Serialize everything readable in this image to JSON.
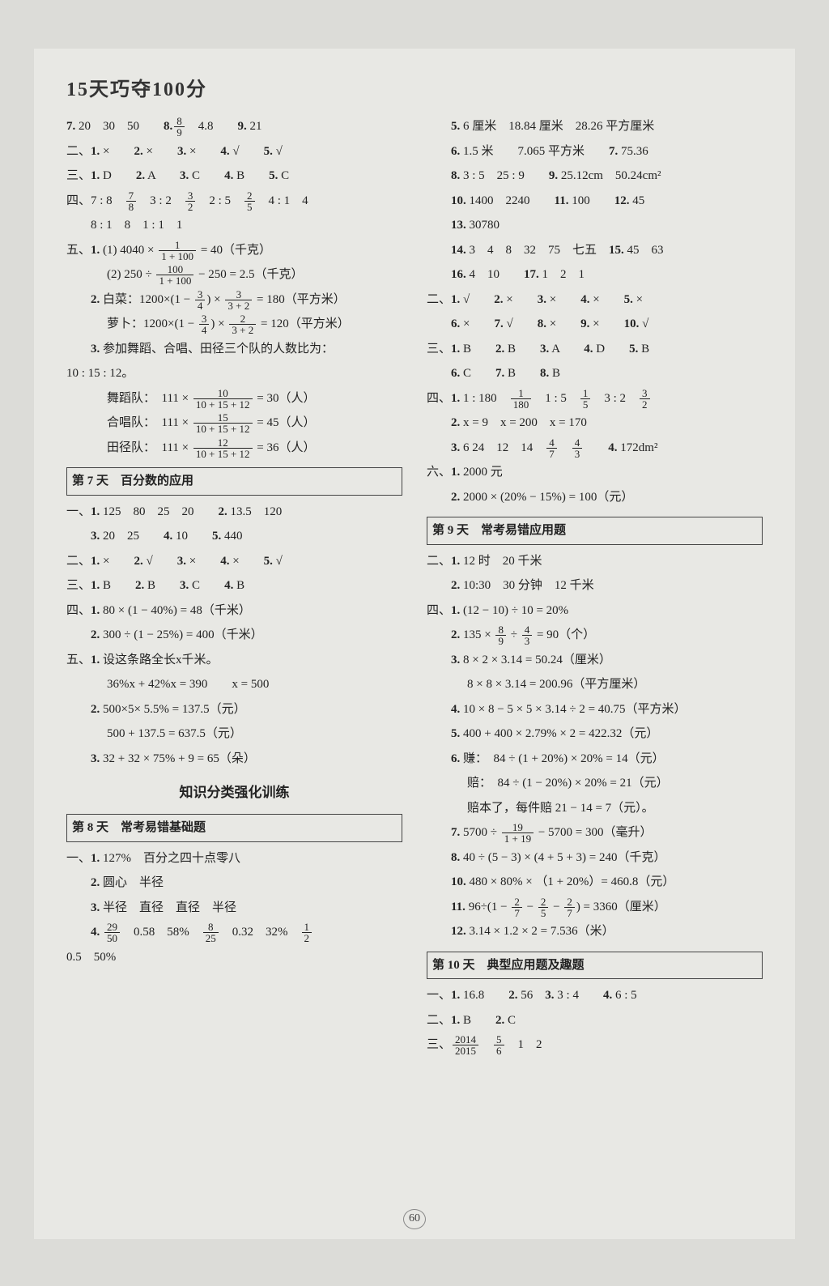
{
  "page_title": "15天巧夺100分",
  "page_number": "60",
  "colors": {
    "bg": "#e8e8e4",
    "text": "#222",
    "border": "#444"
  },
  "left": {
    "top_lines": [
      {
        "pre": "",
        "items": [
          {
            "b": "7.",
            "t": " 20　30　50　　"
          },
          {
            "b": "8.",
            "frac": [
              "8",
              "9"
            ],
            "t2": "　4.8　　"
          },
          {
            "b": "9.",
            "t": " 21"
          }
        ]
      },
      {
        "pre": "二、",
        "items": [
          {
            "b": "1.",
            "t": " ×　　"
          },
          {
            "b": "2.",
            "t": " ×　　"
          },
          {
            "b": "3.",
            "t": " ×　　"
          },
          {
            "b": "4.",
            "t": " √　　"
          },
          {
            "b": "5.",
            "t": " √"
          }
        ]
      },
      {
        "pre": "三、",
        "items": [
          {
            "b": "1.",
            "t": " D　　"
          },
          {
            "b": "2.",
            "t": " A　　"
          },
          {
            "b": "3.",
            "t": " C　　"
          },
          {
            "b": "4.",
            "t": " B　　"
          },
          {
            "b": "5.",
            "t": " C"
          }
        ]
      }
    ],
    "si_line1": {
      "pre": "四、",
      "parts": [
        {
          "t": "7 : 8　"
        },
        {
          "frac": [
            "7",
            "8"
          ]
        },
        {
          "t": "　3 : 2　"
        },
        {
          "frac": [
            "3",
            "2"
          ]
        },
        {
          "t": "　2 : 5　"
        },
        {
          "frac": [
            "2",
            "5"
          ]
        },
        {
          "t": "　4 : 1　4"
        }
      ]
    },
    "si_line2": "8 : 1　8　1 : 1　1",
    "wu1": {
      "pre": "五、",
      "b": "1.",
      "a_pre": " (1)  4040 × ",
      "a_frac": [
        "1",
        "1 + 100"
      ],
      "a_post": " = 40（千克）"
    },
    "wu1b": {
      "pre": "(2)  250 ÷ ",
      "frac": [
        "100",
        "1 + 100"
      ],
      "post": " − 250 = 2.5（千克）"
    },
    "wu2a": {
      "b": "2.",
      "label": " 白菜：1200×",
      "frac1": [
        "3",
        "4"
      ],
      "mid": "×",
      "frac2": [
        "3",
        "3 + 2"
      ],
      "post": " = 180（平方米）"
    },
    "wu2b": {
      "label": "萝卜：1200×",
      "frac1": [
        "3",
        "4"
      ],
      "mid": "×",
      "frac2": [
        "2",
        "3 + 2"
      ],
      "post": " = 120（平方米）"
    },
    "wu3_text": "3. 参加舞蹈、合唱、田径三个队的人数比为：",
    "wu3_ratio": "10 : 15 : 12。",
    "wu3_rows": [
      {
        "label": "舞蹈队：　111 × ",
        "frac": [
          "10",
          "10 + 15 + 12"
        ],
        "post": " = 30（人）"
      },
      {
        "label": "合唱队：　111 × ",
        "frac": [
          "15",
          "10 + 15 + 12"
        ],
        "post": " = 45（人）"
      },
      {
        "label": "田径队：　111 × ",
        "frac": [
          "12",
          "10 + 15 + 12"
        ],
        "post": " = 36（人）"
      }
    ],
    "day7_head": "第 7 天　百分数的应用",
    "day7": [
      {
        "pre": "一、",
        "items": [
          {
            "b": "1.",
            "t": " 125　80　25　20　　"
          },
          {
            "b": "2.",
            "t": " 13.5　120"
          }
        ]
      },
      {
        "pre": "",
        "items": [
          {
            "b": "3.",
            "t": " 20　25　　"
          },
          {
            "b": "4.",
            "t": " 10　　"
          },
          {
            "b": "5.",
            "t": " 440"
          }
        ],
        "indent": 1
      },
      {
        "pre": "二、",
        "items": [
          {
            "b": "1.",
            "t": " ×　　"
          },
          {
            "b": "2.",
            "t": " √　　"
          },
          {
            "b": "3.",
            "t": " ×　　"
          },
          {
            "b": "4.",
            "t": " ×　　"
          },
          {
            "b": "5.",
            "t": " √"
          }
        ]
      },
      {
        "pre": "三、",
        "items": [
          {
            "b": "1.",
            "t": " B　　"
          },
          {
            "b": "2.",
            "t": " B　　"
          },
          {
            "b": "3.",
            "t": " C　　"
          },
          {
            "b": "4.",
            "t": " B"
          }
        ]
      },
      {
        "pre": "四、",
        "items": [
          {
            "b": "1.",
            "t": " 80 × (1 − 40%) = 48（千米）"
          }
        ]
      },
      {
        "pre": "",
        "items": [
          {
            "b": "2.",
            "t": " 300 ÷ (1 − 25%) = 400（千米）"
          }
        ],
        "indent": 1
      },
      {
        "pre": "五、",
        "items": [
          {
            "b": "1.",
            "t": " 设这条路全长x千米。"
          }
        ]
      },
      {
        "pre": "",
        "plain": "36%x + 42%x = 390　　x = 500",
        "indent": 2
      },
      {
        "pre": "",
        "items": [
          {
            "b": "2.",
            "t": " 500×5× 5.5% = 137.5（元）"
          }
        ],
        "indent": 1
      },
      {
        "pre": "",
        "plain": "500 + 137.5 = 637.5（元）",
        "indent": 2
      },
      {
        "pre": "",
        "items": [
          {
            "b": "3.",
            "t": " 32 + 32 × 75% + 9 = 65（朵）"
          }
        ],
        "indent": 1
      }
    ],
    "mid_head": "知识分类强化训练",
    "day8_head": "第 8 天　常考易错基础题",
    "day8": [
      {
        "pre": "一、",
        "items": [
          {
            "b": "1.",
            "t": " 127%　百分之四十点零八"
          }
        ]
      },
      {
        "pre": "",
        "items": [
          {
            "b": "2.",
            "t": " 圆心　半径"
          }
        ],
        "indent": 1
      },
      {
        "pre": "",
        "items": [
          {
            "b": "3.",
            "t": " 半径　直径　直径　半径"
          }
        ],
        "indent": 1
      }
    ],
    "day8_4": {
      "b": "4.",
      "frac1": [
        "29",
        "50"
      ],
      "mid": "　0.58　58%　",
      "frac2": [
        "8",
        "25"
      ],
      "mid2": "　0.32　32%　",
      "frac3": [
        "1",
        "2"
      ]
    },
    "day8_tail": "0.5　50%"
  },
  "right": {
    "top": [
      {
        "items": [
          {
            "b": "5.",
            "t": " 6 厘米　18.84 厘米　28.26 平方厘米"
          }
        ]
      },
      {
        "items": [
          {
            "b": "6.",
            "t": " 1.5 米　　7.065 平方米　　"
          },
          {
            "b": "7.",
            "t": " 75.36"
          }
        ]
      },
      {
        "items": [
          {
            "b": "8.",
            "t": " 3 : 5　25 : 9　　"
          },
          {
            "b": "9.",
            "t": " 25.12cm　50.24cm²"
          }
        ]
      },
      {
        "items": [
          {
            "b": "10.",
            "t": " 1400　2240　　"
          },
          {
            "b": "11.",
            "t": " 100　　"
          },
          {
            "b": "12.",
            "t": " 45"
          }
        ]
      },
      {
        "items": [
          {
            "b": "13.",
            "t": " 30780"
          }
        ]
      },
      {
        "items": [
          {
            "b": "14.",
            "t": " 3　4　8　32　75　七五　"
          },
          {
            "b": "15.",
            "t": " 45　63"
          }
        ]
      },
      {
        "items": [
          {
            "b": "16.",
            "t": " 4　10　　"
          },
          {
            "b": "17.",
            "t": " 1　2　1"
          }
        ]
      }
    ],
    "sec2": [
      {
        "pre": "二、",
        "items": [
          {
            "b": "1.",
            "t": " √　　"
          },
          {
            "b": "2.",
            "t": " ×　　"
          },
          {
            "b": "3.",
            "t": " ×　　"
          },
          {
            "b": "4.",
            "t": " ×　　"
          },
          {
            "b": "5.",
            "t": " ×"
          }
        ]
      },
      {
        "pre": "",
        "items": [
          {
            "b": "6.",
            "t": " ×　　"
          },
          {
            "b": "7.",
            "t": " √　　"
          },
          {
            "b": "8.",
            "t": " ×　　"
          },
          {
            "b": "9.",
            "t": " ×　　"
          },
          {
            "b": "10.",
            "t": " √"
          }
        ],
        "indent": 1
      },
      {
        "pre": "三、",
        "items": [
          {
            "b": "1.",
            "t": " B　　"
          },
          {
            "b": "2.",
            "t": " B　　"
          },
          {
            "b": "3.",
            "t": " A　　"
          },
          {
            "b": "4.",
            "t": " D　　"
          },
          {
            "b": "5.",
            "t": " B"
          }
        ]
      },
      {
        "pre": "",
        "items": [
          {
            "b": "6.",
            "t": " C　　"
          },
          {
            "b": "7.",
            "t": " B　　"
          },
          {
            "b": "8.",
            "t": " B"
          }
        ],
        "indent": 1
      }
    ],
    "si": {
      "line1": {
        "pre": "四、",
        "b": "1.",
        "parts": [
          {
            "t": " 1 : 180　"
          },
          {
            "frac": [
              "1",
              "180"
            ]
          },
          {
            "t": "　1 : 5　"
          },
          {
            "frac": [
              "1",
              "5"
            ]
          },
          {
            "t": "　3 : 2　"
          },
          {
            "frac": [
              "3",
              "2"
            ]
          }
        ]
      },
      "line2": {
        "b": "2.",
        "t": " x = 9　x = 200　x = 170"
      },
      "line3": {
        "b": "3.",
        "parts": [
          {
            "t": " 6 24　12　14　"
          },
          {
            "frac": [
              "4",
              "7"
            ]
          },
          {
            "t": "　"
          },
          {
            "frac": [
              "4",
              "3"
            ]
          },
          {
            "t": "　　"
          }
        ],
        "b2": "4.",
        "t2": " 172dm²"
      }
    },
    "liu": [
      {
        "pre": "六、",
        "items": [
          {
            "b": "1.",
            "t": " 2000 元"
          }
        ]
      },
      {
        "pre": "",
        "items": [
          {
            "b": "2.",
            "t": " 2000 × (20% − 15%) = 100（元）"
          }
        ],
        "indent": 1
      }
    ],
    "day9_head": "第 9 天　常考易错应用题",
    "day9_top": [
      {
        "pre": "二、",
        "items": [
          {
            "b": "1.",
            "t": " 12 时　20 千米"
          }
        ]
      },
      {
        "pre": "",
        "items": [
          {
            "b": "2.",
            "t": " 10:30　30 分钟　12 千米"
          }
        ],
        "indent": 1
      },
      {
        "pre": "四、",
        "items": [
          {
            "b": "1.",
            "t": " (12 − 10) ÷ 10 = 20%"
          }
        ]
      }
    ],
    "d9_2": {
      "b": "2.",
      "pre": " 135 × ",
      "frac1": [
        "8",
        "9"
      ],
      "mid": " ÷ ",
      "frac2": [
        "4",
        "3"
      ],
      "post": " = 90（个）"
    },
    "d9_rest": [
      {
        "b": "3.",
        "t": " 8 × 2 × 3.14 = 50.24（厘米）"
      },
      {
        "plain": "8 × 8 × 3.14 = 200.96（平方厘米）",
        "indent": 2
      },
      {
        "b": "4.",
        "t": " 10 × 8 − 5 × 5 × 3.14 ÷ 2 = 40.75（平方米）"
      },
      {
        "b": "5.",
        "t": " 400 + 400 × 2.79% × 2 = 422.32（元）"
      },
      {
        "b": "6.",
        "t": " 赚：　84 ÷ (1 + 20%) × 20% = 14（元）"
      },
      {
        "plain": "赔：　84 ÷ (1 − 20%) × 20% = 21（元）",
        "indent": 2
      },
      {
        "plain": "赔本了，每件赔 21 − 14 = 7（元）。",
        "indent": 2
      }
    ],
    "d9_7": {
      "b": "7.",
      "pre": " 5700 ÷ ",
      "frac": [
        "19",
        "1 + 19"
      ],
      "post": " − 5700 = 300（毫升）"
    },
    "d9_rest2": [
      {
        "b": "8.",
        "t": " 40 ÷ (5 − 3) × (4 + 5 + 3) = 240（千克）"
      },
      {
        "b": "10.",
        "t": " 480 × 80% × （1 + 20%）= 460.8（元）"
      }
    ],
    "d9_11": {
      "b": "11.",
      "pre": " 96÷",
      "parts": [
        {
          "t": "(1 − "
        },
        {
          "frac": [
            "2",
            "7"
          ]
        },
        {
          "t": " − "
        },
        {
          "frac": [
            "2",
            "5"
          ]
        },
        {
          "t": " − "
        },
        {
          "frac": [
            "2",
            "7"
          ]
        },
        {
          "t": ")"
        }
      ],
      "post": " = 3360（厘米）"
    },
    "d9_12": {
      "b": "12.",
      "t": " 3.14 × 1.2 × 2 = 7.536（米）"
    },
    "day10_head": "第 10 天　典型应用题及趣题",
    "day10": [
      {
        "pre": "一、",
        "items": [
          {
            "b": "1.",
            "t": " 16.8　　"
          },
          {
            "b": "2.",
            "t": " 56　"
          },
          {
            "b": "3.",
            "t": " 3 : 4　　"
          },
          {
            "b": "4.",
            "t": " 6 : 5"
          }
        ]
      },
      {
        "pre": "二、",
        "items": [
          {
            "b": "1.",
            "t": " B　　"
          },
          {
            "b": "2.",
            "t": " C"
          }
        ]
      }
    ],
    "day10_3": {
      "pre": "三、",
      "frac1": [
        "2014",
        "2015"
      ],
      "frac2": [
        "5",
        "6"
      ],
      "post": "　1　2"
    }
  }
}
